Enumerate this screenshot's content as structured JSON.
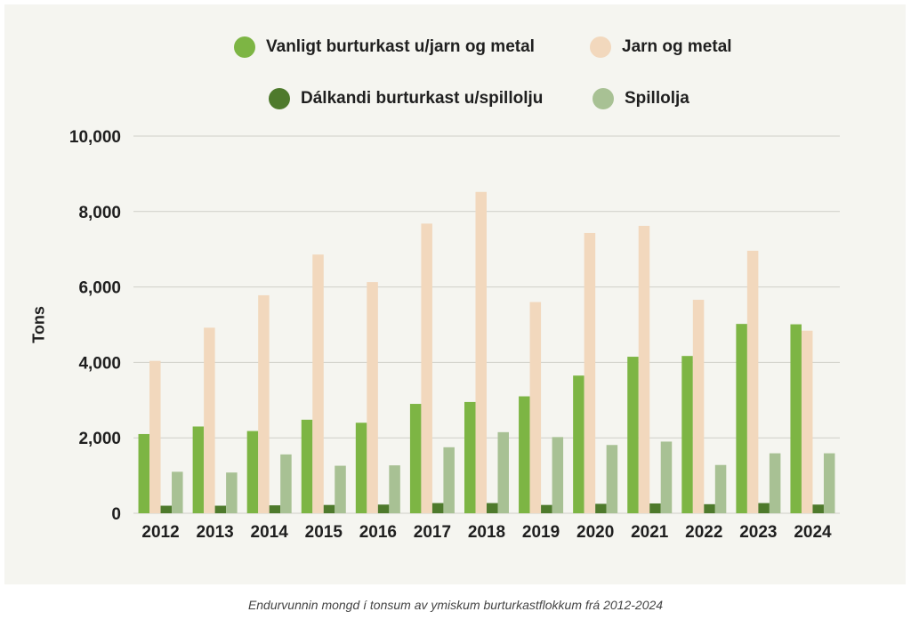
{
  "chart_data": {
    "type": "bar",
    "title": "",
    "xlabel": "",
    "ylabel": "Tons",
    "ylim": [
      0,
      10000
    ],
    "yticks": [
      {
        "value": 0,
        "label": "0"
      },
      {
        "value": 2000,
        "label": "2,000"
      },
      {
        "value": 4000,
        "label": "4,000"
      },
      {
        "value": 6000,
        "label": "6,000"
      },
      {
        "value": 8000,
        "label": "8,000"
      },
      {
        "value": 10000,
        "label": "10,000"
      }
    ],
    "grid": true,
    "legend_position": "top",
    "categories": [
      "2012",
      "2013",
      "2014",
      "2015",
      "2016",
      "2017",
      "2018",
      "2019",
      "2020",
      "2021",
      "2022",
      "2023",
      "2024"
    ],
    "series": [
      {
        "name": "Vanligt burturkast u/jarn og metal",
        "color": "#7db544",
        "values": [
          2100,
          2300,
          2180,
          2480,
          2400,
          2900,
          2950,
          3100,
          3650,
          4150,
          4170,
          5020,
          5010
        ]
      },
      {
        "name": "Jarn og metal",
        "color": "#f2d8bd",
        "values": [
          4040,
          4920,
          5780,
          6860,
          6130,
          7680,
          8520,
          5600,
          7430,
          7620,
          5660,
          6960,
          4840
        ]
      },
      {
        "name": "Dálkandi burturkast u/spillolju",
        "color": "#4e7a2c",
        "values": [
          200,
          200,
          210,
          220,
          230,
          270,
          270,
          220,
          250,
          260,
          240,
          270,
          230
        ]
      },
      {
        "name": "Spillolja",
        "color": "#a8c194",
        "values": [
          1100,
          1080,
          1560,
          1260,
          1270,
          1750,
          2150,
          2020,
          1810,
          1900,
          1280,
          1590,
          1590
        ]
      }
    ]
  },
  "legend": [
    {
      "label": "Vanligt burturkast u/jarn og metal",
      "color": "#7db544"
    },
    {
      "label": "Jarn og metal",
      "color": "#f2d8bd"
    },
    {
      "label": "Dálkandi burturkast u/spillolju",
      "color": "#4e7a2c"
    },
    {
      "label": "Spillolja",
      "color": "#a8c194"
    }
  ],
  "caption": "Endurvunnin mongd í tonsum av ymiskum burturkastflokkum frá 2012-2024"
}
